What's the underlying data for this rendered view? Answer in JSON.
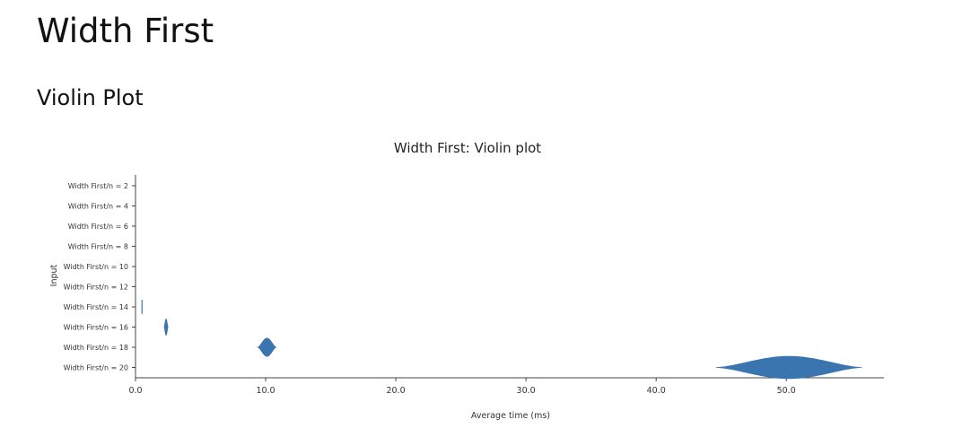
{
  "page": {
    "title": "Width First",
    "section": "Violin Plot"
  },
  "colors": {
    "violin": "#3a75b0",
    "axis": "#444444"
  },
  "chart_data": {
    "type": "violin",
    "title": "Width First: Violin plot",
    "xlabel": "Average time (ms)",
    "ylabel": "Input",
    "xlim": [
      0,
      57.5
    ],
    "xticks": [
      "0.0",
      "10.0",
      "20.0",
      "30.0",
      "40.0",
      "50.0"
    ],
    "xtick_values": [
      0,
      10,
      20,
      30,
      40,
      50
    ],
    "categories": [
      "Width First/n = 2",
      "Width First/n = 4",
      "Width First/n = 6",
      "Width First/n = 8",
      "Width First/n = 10",
      "Width First/n = 12",
      "Width First/n = 14",
      "Width First/n = 16",
      "Width First/n = 18",
      "Width First/n = 20"
    ],
    "series": [
      {
        "category": "Width First/n = 2",
        "median": 0.0,
        "min": 0.0,
        "max": 0.0,
        "max_width": 0.0
      },
      {
        "category": "Width First/n = 4",
        "median": 0.0,
        "min": 0.0,
        "max": 0.0,
        "max_width": 0.0
      },
      {
        "category": "Width First/n = 6",
        "median": 0.0,
        "min": 0.0,
        "max": 0.0,
        "max_width": 0.0
      },
      {
        "category": "Width First/n = 8",
        "median": 0.0,
        "min": 0.0,
        "max": 0.0,
        "max_width": 0.0
      },
      {
        "category": "Width First/n = 10",
        "median": 0.0,
        "min": 0.0,
        "max": 0.0,
        "max_width": 0.0
      },
      {
        "category": "Width First/n = 12",
        "median": 0.05,
        "min": 0.0,
        "max": 0.1,
        "max_width": 0.0
      },
      {
        "category": "Width First/n = 14",
        "median": 0.5,
        "min": 0.45,
        "max": 0.55,
        "max_width": 0.35
      },
      {
        "category": "Width First/n = 16",
        "median": 2.35,
        "min": 2.2,
        "max": 2.5,
        "max_width": 0.4
      },
      {
        "category": "Width First/n = 18",
        "median": 10.1,
        "min": 9.4,
        "max": 10.8,
        "max_width": 0.45
      },
      {
        "category": "Width First/n = 20",
        "median": 50.2,
        "min": 44.6,
        "max": 55.8,
        "max_width": 0.55
      }
    ]
  }
}
